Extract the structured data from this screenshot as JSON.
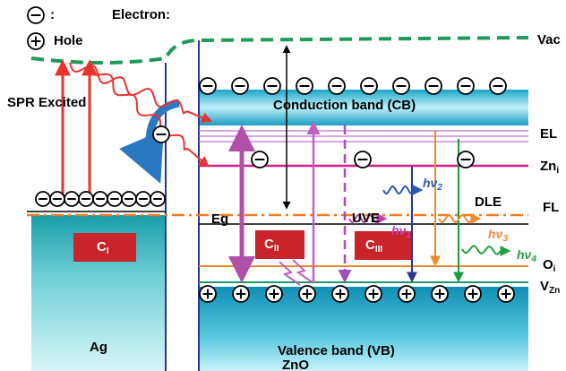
{
  "legend": {
    "electron": "Electron:",
    "hole": "Hole"
  },
  "labels": {
    "spr": "SPR Excited",
    "cb": "Conduction band (CB)",
    "vb": "Valence band (VB)",
    "ag": "Ag",
    "zno": "ZnO",
    "eg": "Eg",
    "uve": "UVE",
    "dle": "DLE"
  },
  "levels": {
    "vac": {
      "text": "Vac"
    },
    "el": {
      "text": "EL"
    },
    "zni": {
      "text": "Zn",
      "sub": "i"
    },
    "fl": {
      "text": "FL"
    },
    "oi": {
      "text": "O",
      "sub": "i"
    },
    "vzn": {
      "text": "V",
      "sub": "Zn"
    }
  },
  "centers": [
    {
      "text": "C",
      "sub": "I"
    },
    {
      "text": "C",
      "sub": "II"
    },
    {
      "text": "C",
      "sub": "III"
    }
  ],
  "emissions": [
    {
      "text": "hν",
      "sub": "1"
    },
    {
      "text": "hν",
      "sub": "2"
    },
    {
      "text": "hν",
      "sub": "3"
    },
    {
      "text": "hν",
      "sub": "4"
    }
  ]
}
